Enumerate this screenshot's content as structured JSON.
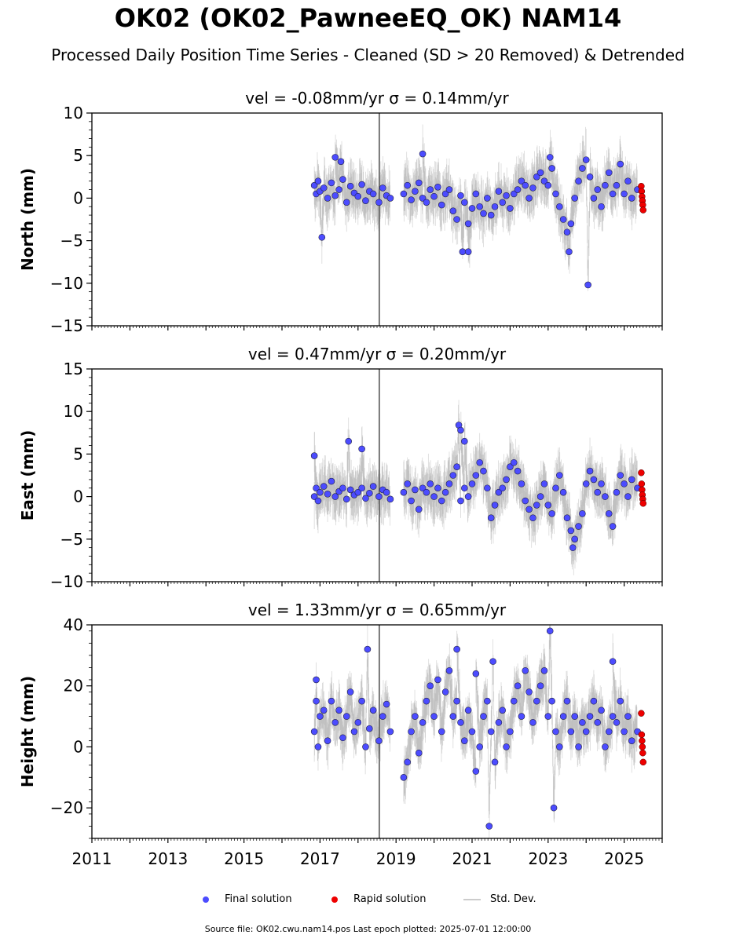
{
  "title": "OK02 (OK02_PawneeEQ_OK) NAM14",
  "subtitle": "Processed Daily Position Time Series - Cleaned (SD > 20 Removed) & Detrended",
  "legend": {
    "final": "Final solution",
    "rapid": "Rapid solution",
    "stddev": "Std. Dev."
  },
  "footer": "Source file: OK02.cwu.nam14.pos  Last epoch plotted: 2025-07-01 12:00:00",
  "colors": {
    "final": "#4c4cff",
    "rapid": "#ee0000",
    "stddev": "#aaaaaa",
    "axis": "#000000"
  },
  "chart_data": [
    {
      "type": "scatter",
      "panel": "north",
      "title": "vel = -0.08mm/yr   σ = 0.14mm/yr",
      "ylabel": "North (mm)",
      "xlabel": "",
      "xlim": [
        2011.0,
        2026.0
      ],
      "ylim": [
        -15,
        10
      ],
      "yticks": [
        -15,
        -10,
        -5,
        0,
        5,
        10
      ],
      "ytick_labels": [
        "−15",
        "−10",
        "−5",
        "0",
        "5",
        "10"
      ],
      "xticks": [
        2011,
        2013,
        2015,
        2017,
        2019,
        2021,
        2023,
        2025
      ],
      "xtick_labels": [],
      "grid": false,
      "series": [
        {
          "name": "Final solution",
          "x": [
            2016.85,
            2016.9,
            2016.95,
            2017.0,
            2017.1,
            2017.2,
            2017.3,
            2017.4,
            2017.5,
            2017.6,
            2017.7,
            2017.8,
            2017.9,
            2018.0,
            2018.1,
            2018.2,
            2018.3,
            2018.4,
            2018.55,
            2018.65,
            2018.75,
            2018.85,
            2019.2,
            2019.3,
            2019.4,
            2019.5,
            2019.6,
            2019.7,
            2019.8,
            2019.9,
            2020.0,
            2020.1,
            2020.2,
            2020.3,
            2020.4,
            2020.5,
            2020.6,
            2020.7,
            2020.8,
            2020.9,
            2021.0,
            2021.1,
            2021.2,
            2021.3,
            2021.4,
            2021.5,
            2021.6,
            2021.7,
            2021.8,
            2021.9,
            2022.0,
            2022.1,
            2022.2,
            2022.3,
            2022.4,
            2022.5,
            2022.6,
            2022.7,
            2022.8,
            2022.9,
            2023.0,
            2023.1,
            2023.2,
            2023.3,
            2023.4,
            2023.5,
            2023.6,
            2023.7,
            2023.8,
            2023.9,
            2024.0,
            2024.1,
            2024.2,
            2024.3,
            2024.4,
            2024.5,
            2024.6,
            2024.7,
            2024.8,
            2024.9,
            2025.0,
            2025.1,
            2025.2,
            2025.35,
            2017.05,
            2017.4,
            2017.55,
            2019.7,
            2020.75,
            2020.9,
            2023.05,
            2023.55,
            2024.05
          ],
          "y": [
            1.5,
            0.5,
            2.0,
            0.8,
            1.2,
            0.0,
            1.8,
            0.3,
            1.0,
            2.2,
            -0.5,
            1.4,
            0.6,
            0.2,
            1.6,
            -0.3,
            0.8,
            0.5,
            -0.5,
            1.2,
            0.3,
            0.0,
            0.5,
            1.5,
            -0.2,
            0.8,
            1.8,
            0.0,
            -0.5,
            1.0,
            0.2,
            1.3,
            -0.8,
            0.5,
            1.0,
            -1.5,
            -2.5,
            0.3,
            -0.5,
            -3.0,
            -1.2,
            0.5,
            -1.0,
            -1.8,
            0.0,
            -2.0,
            -1.0,
            0.8,
            -0.5,
            0.3,
            -1.2,
            0.5,
            1.0,
            2.0,
            1.5,
            0.0,
            1.2,
            2.5,
            3.0,
            2.0,
            1.5,
            3.5,
            0.5,
            -1.0,
            -2.5,
            -4.0,
            -3.0,
            0.0,
            2.0,
            3.5,
            4.5,
            2.5,
            0.0,
            1.0,
            -1.0,
            1.5,
            3.0,
            0.5,
            1.5,
            4.0,
            0.5,
            2.0,
            0.0,
            1.0,
            -4.6,
            4.8,
            4.3,
            5.2,
            -6.3,
            -6.3,
            4.8,
            -6.3,
            -10.2
          ]
        },
        {
          "name": "Rapid solution",
          "x": [
            2025.45,
            2025.46,
            2025.47,
            2025.48,
            2025.49,
            2025.5
          ],
          "y": [
            1.4,
            0.8,
            0.2,
            -0.3,
            -0.8,
            -1.4
          ]
        }
      ]
    },
    {
      "type": "scatter",
      "panel": "east",
      "title": "vel = 0.47mm/yr   σ = 0.20mm/yr",
      "ylabel": "East (mm)",
      "xlabel": "",
      "xlim": [
        2011.0,
        2026.0
      ],
      "ylim": [
        -10,
        15
      ],
      "yticks": [
        -10,
        -5,
        0,
        5,
        10,
        15
      ],
      "ytick_labels": [
        "−10",
        "−5",
        "0",
        "5",
        "10",
        "15"
      ],
      "xticks": [
        2011,
        2013,
        2015,
        2017,
        2019,
        2021,
        2023,
        2025
      ],
      "xtick_labels": [],
      "grid": false,
      "series": [
        {
          "name": "Final solution",
          "x": [
            2016.85,
            2016.9,
            2016.95,
            2017.0,
            2017.1,
            2017.2,
            2017.3,
            2017.4,
            2017.5,
            2017.6,
            2017.7,
            2017.8,
            2017.9,
            2018.0,
            2018.1,
            2018.2,
            2018.3,
            2018.4,
            2018.55,
            2018.65,
            2018.75,
            2018.85,
            2019.2,
            2019.3,
            2019.4,
            2019.5,
            2019.6,
            2019.7,
            2019.8,
            2019.9,
            2020.0,
            2020.1,
            2020.2,
            2020.3,
            2020.4,
            2020.5,
            2020.6,
            2020.7,
            2020.8,
            2020.9,
            2021.0,
            2021.1,
            2021.2,
            2021.3,
            2021.4,
            2021.5,
            2021.6,
            2021.7,
            2021.8,
            2021.9,
            2022.0,
            2022.1,
            2022.2,
            2022.3,
            2022.4,
            2022.5,
            2022.6,
            2022.7,
            2022.8,
            2022.9,
            2023.0,
            2023.1,
            2023.2,
            2023.3,
            2023.4,
            2023.5,
            2023.6,
            2023.7,
            2023.8,
            2023.9,
            2024.0,
            2024.1,
            2024.2,
            2024.3,
            2024.4,
            2024.5,
            2024.6,
            2024.7,
            2024.8,
            2024.9,
            2025.0,
            2025.1,
            2025.2,
            2025.35,
            2016.85,
            2017.75,
            2018.1,
            2020.65,
            2020.7,
            2020.8,
            2023.65
          ],
          "y": [
            0.0,
            1.0,
            -0.5,
            0.5,
            1.2,
            0.3,
            1.8,
            0.0,
            0.6,
            1.0,
            -0.3,
            0.8,
            0.2,
            0.5,
            1.0,
            -0.2,
            0.4,
            1.2,
            0.0,
            0.8,
            0.5,
            -0.3,
            0.5,
            1.5,
            -0.5,
            0.8,
            -1.5,
            1.0,
            0.5,
            1.5,
            0.0,
            1.0,
            -0.5,
            0.5,
            1.5,
            2.5,
            3.5,
            -0.5,
            1.0,
            0.0,
            1.5,
            2.5,
            4.0,
            3.0,
            1.0,
            -2.5,
            -1.0,
            0.5,
            1.0,
            2.0,
            3.5,
            4.0,
            3.0,
            1.5,
            -0.5,
            -1.5,
            -2.5,
            -1.0,
            0.0,
            1.5,
            -1.0,
            -2.0,
            1.0,
            2.5,
            0.5,
            -2.5,
            -4.0,
            -5.0,
            -3.5,
            -2.0,
            1.5,
            3.0,
            2.0,
            0.5,
            1.5,
            0.0,
            -2.0,
            -3.5,
            0.5,
            2.5,
            1.5,
            0.0,
            2.0,
            1.0,
            4.8,
            6.5,
            5.6,
            8.4,
            7.8,
            6.5,
            -6.0
          ]
        },
        {
          "name": "Rapid solution",
          "x": [
            2025.45,
            2025.46,
            2025.47,
            2025.48,
            2025.49,
            2025.5
          ],
          "y": [
            2.8,
            1.5,
            0.8,
            0.2,
            -0.3,
            -0.8
          ]
        }
      ]
    },
    {
      "type": "scatter",
      "panel": "height",
      "title": "vel = 1.33mm/yr   σ = 0.65mm/yr",
      "ylabel": "Height (mm)",
      "xlabel": "",
      "xlim": [
        2011.0,
        2026.0
      ],
      "ylim": [
        -30,
        40
      ],
      "yticks": [
        -20,
        0,
        20,
        40
      ],
      "ytick_labels": [
        "−20",
        "0",
        "20",
        "40"
      ],
      "xticks": [
        2011,
        2013,
        2015,
        2017,
        2019,
        2021,
        2023,
        2025
      ],
      "xtick_labels": [
        "2011",
        "2013",
        "2015",
        "2017",
        "2019",
        "2021",
        "2023",
        "2025"
      ],
      "grid": false,
      "series": [
        {
          "name": "Final solution",
          "x": [
            2016.85,
            2016.9,
            2016.95,
            2017.0,
            2017.1,
            2017.2,
            2017.3,
            2017.4,
            2017.5,
            2017.6,
            2017.7,
            2017.8,
            2017.9,
            2018.0,
            2018.1,
            2018.2,
            2018.3,
            2018.4,
            2018.55,
            2018.65,
            2018.75,
            2018.85,
            2019.2,
            2019.3,
            2019.4,
            2019.5,
            2019.6,
            2019.7,
            2019.8,
            2019.9,
            2020.0,
            2020.1,
            2020.2,
            2020.3,
            2020.4,
            2020.5,
            2020.6,
            2020.7,
            2020.8,
            2020.9,
            2021.0,
            2021.1,
            2021.2,
            2021.3,
            2021.4,
            2021.5,
            2021.6,
            2021.7,
            2021.8,
            2021.9,
            2022.0,
            2022.1,
            2022.2,
            2022.3,
            2022.4,
            2022.5,
            2022.6,
            2022.7,
            2022.8,
            2022.9,
            2023.0,
            2023.1,
            2023.2,
            2023.3,
            2023.4,
            2023.5,
            2023.6,
            2023.7,
            2023.8,
            2023.9,
            2024.0,
            2024.1,
            2024.2,
            2024.3,
            2024.4,
            2024.5,
            2024.6,
            2024.7,
            2024.8,
            2024.9,
            2025.0,
            2025.1,
            2025.2,
            2025.35,
            2016.9,
            2018.25,
            2020.6,
            2021.1,
            2021.45,
            2021.55,
            2023.05,
            2023.15,
            2024.7
          ],
          "y": [
            5.0,
            15.0,
            0.0,
            10.0,
            12.0,
            2.0,
            15.0,
            8.0,
            12.0,
            3.0,
            10.0,
            18.0,
            5.0,
            8.0,
            15.0,
            0.0,
            6.0,
            12.0,
            2.0,
            10.0,
            14.0,
            5.0,
            -10.0,
            -5.0,
            5.0,
            10.0,
            -2.0,
            8.0,
            15.0,
            20.0,
            10.0,
            22.0,
            5.0,
            18.0,
            25.0,
            10.0,
            15.0,
            8.0,
            2.0,
            12.0,
            5.0,
            -8.0,
            0.0,
            10.0,
            15.0,
            5.0,
            -5.0,
            8.0,
            12.0,
            0.0,
            5.0,
            15.0,
            20.0,
            10.0,
            25.0,
            18.0,
            8.0,
            15.0,
            20.0,
            25.0,
            10.0,
            15.0,
            5.0,
            0.0,
            10.0,
            15.0,
            5.0,
            10.0,
            0.0,
            8.0,
            5.0,
            10.0,
            15.0,
            8.0,
            12.0,
            0.0,
            5.0,
            10.0,
            8.0,
            15.0,
            5.0,
            10.0,
            2.0,
            5.0,
            22.0,
            32.0,
            32.0,
            24.0,
            -26.0,
            28.0,
            38.0,
            -20.0,
            28.0
          ]
        },
        {
          "name": "Rapid solution",
          "x": [
            2025.45,
            2025.46,
            2025.47,
            2025.48,
            2025.49,
            2025.5
          ],
          "y": [
            11.0,
            4.0,
            2.0,
            0.0,
            -2.0,
            -5.0
          ]
        }
      ]
    }
  ]
}
